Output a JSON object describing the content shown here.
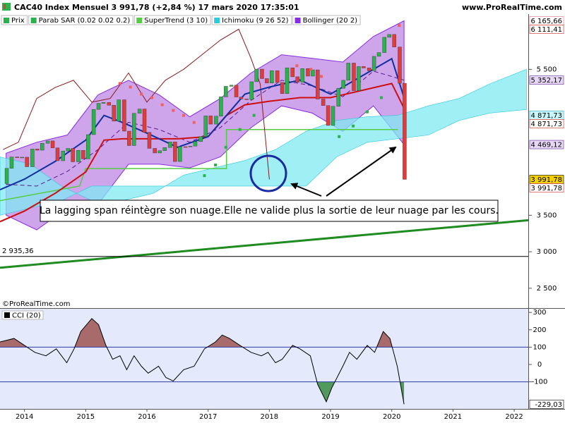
{
  "header": {
    "title": "CAC40 Index Mensuel 3 991,78 (+2,84 %) 17 mars 2020 17:35:01",
    "site": "www.ProRealTime.com",
    "watermark": "©ProRealTime.com"
  },
  "chart_data": [
    {
      "type": "price",
      "xlim": [
        2013.6,
        2022.23
      ],
      "ylim": [
        2228,
        6257
      ],
      "yticks": [
        {
          "value": 2500,
          "label": "2 500"
        },
        {
          "value": 3000,
          "label": "3 000"
        },
        {
          "value": 3500,
          "label": "3 500"
        },
        {
          "value": 5500,
          "label": "5 500"
        }
      ],
      "annotation": "La lagging span réintègre son nuage.Elle ne valide plus la sortie de leur nuage par les cours.",
      "series": [
        {
          "name": "Prix",
          "color": "#2bb24c",
          "down_color": "#e03c3c",
          "x": [
            2013.63,
            2013.71,
            2013.79,
            2013.88,
            2013.96,
            2014.04,
            2014.13,
            2014.21,
            2014.29,
            2014.38,
            2014.46,
            2014.54,
            2014.63,
            2014.71,
            2014.79,
            2014.88,
            2014.96,
            2015.04,
            2015.13,
            2015.21,
            2015.29,
            2015.38,
            2015.46,
            2015.54,
            2015.63,
            2015.71,
            2015.79,
            2015.88,
            2015.96,
            2016.04,
            2016.13,
            2016.21,
            2016.29,
            2016.38,
            2016.46,
            2016.54,
            2016.63,
            2016.71,
            2016.79,
            2016.88,
            2016.96,
            2017.04,
            2017.13,
            2017.21,
            2017.29,
            2017.38,
            2017.46,
            2017.54,
            2017.63,
            2017.71,
            2017.79,
            2017.88,
            2017.96,
            2018.04,
            2018.13,
            2018.21,
            2018.29,
            2018.38,
            2018.46,
            2018.54,
            2018.63,
            2018.71,
            2018.79,
            2018.88,
            2018.96,
            2019.04,
            2019.13,
            2019.21,
            2019.29,
            2019.38,
            2019.46,
            2019.54,
            2019.63,
            2019.71,
            2019.79,
            2019.88,
            2019.96,
            2020.04,
            2020.13,
            2020.21
          ],
          "values": [
            3934,
            4143,
            4299,
            4295,
            4296,
            4165,
            4408,
            4392,
            4487,
            4519,
            4423,
            4247,
            4381,
            4416,
            4233,
            4390,
            4273,
            4605,
            4951,
            5034,
            5046,
            5008,
            4790,
            5083,
            4653,
            4455,
            4898,
            4957,
            4637,
            4417,
            4354,
            4385,
            4429,
            4506,
            4237,
            4440,
            4438,
            4448,
            4510,
            4578,
            4862,
            4749,
            4858,
            5123,
            5267,
            5283,
            5121,
            5094,
            5086,
            5330,
            5503,
            5373,
            5313,
            5482,
            5320,
            5167,
            5521,
            5398,
            5324,
            5511,
            5407,
            5493,
            5093,
            5003,
            4731,
            4993,
            5241,
            5350,
            5586,
            5208,
            5539,
            5519,
            5480,
            5678,
            5730,
            5939,
            5978,
            5806,
            5309,
            3991.78
          ]
        },
        {
          "name": "Parab SAR (0.02 0.02 0.2)",
          "color": "#2bb24c",
          "down_color": "#f06060",
          "x": [
            2015.56,
            2015.73,
            2015.91,
            2016.08,
            2016.25,
            2016.43,
            2016.6,
            2016.77,
            2016.94,
            2017.12,
            2017.29,
            2017.52,
            2017.75,
            2018.45,
            2018.68,
            2018.85,
            2019.14,
            2019.37,
            2019.6,
            2019.83,
            2020.12
          ],
          "values": [
            5306,
            5257,
            5160,
            5112,
            5014,
            4937,
            4869,
            4772,
            4043,
            4189,
            4432,
            4675,
            4869,
            5549,
            5500,
            5403,
            4578,
            4723,
            4917,
            5112,
            6102
          ]
        },
        {
          "name": "SuperTrend (3 10)",
          "color": "#55cc44",
          "x": [
            2013.6,
            2014.9,
            2015.0,
            2017.3,
            2017.3,
            2018.9,
            2020.1
          ],
          "values": [
            3700,
            3900,
            4140,
            4140,
            4675,
            4675,
            4675
          ]
        },
        {
          "name": "Ichimoku (9 26 52)",
          "color": "#2fc8dc",
          "cloud": {
            "color": "#7fe9f2",
            "x": [
              2013.6,
              2014.1,
              2014.6,
              2015.1,
              2015.6,
              2016.1,
              2016.6,
              2017.1,
              2017.6,
              2018.1,
              2018.6,
              2019.1,
              2019.6,
              2020.1,
              2020.6,
              2021.1,
              2021.6,
              2022.2
            ],
            "span_a": [
              4300,
              4200,
              3900,
              3700,
              3700,
              3800,
              4050,
              4150,
              4250,
              4400,
              4650,
              4800,
              4850,
              4870,
              5000,
              5100,
              5300,
              5500
            ],
            "span_b": [
              3500,
              3600,
              3700,
              3900,
              3900,
              3900,
              3900,
              3900,
              3900,
              3900,
              3900,
              4300,
              4500,
              4550,
              4600,
              4800,
              4900,
              4950
            ]
          },
          "kijun": {
            "color": "#cc1010",
            "x": [
              2013.6,
              2014.0,
              2014.5,
              2015.0,
              2015.3,
              2015.6,
              2016.0,
              2016.5,
              2017.0,
              2017.3,
              2017.6,
              2018.0,
              2018.5,
              2019.0,
              2019.5,
              2020.0,
              2020.2
            ],
            "values": [
              3413,
              3558,
              3800,
              4092,
              4529,
              4548,
              4548,
              4548,
              4578,
              4869,
              5014,
              5063,
              5112,
              5112,
              5209,
              5306,
              4966
            ]
          },
          "tenkan": {
            "color": "#1030a0",
            "x": [
              2013.6,
              2014.0,
              2014.5,
              2015.0,
              2015.3,
              2015.6,
              2016.0,
              2016.5,
              2017.0,
              2017.3,
              2017.6,
              2018.0,
              2018.5,
              2019.0,
              2019.5,
              2020.0,
              2020.2
            ],
            "values": [
              3850,
              3995,
              4238,
              4529,
              4869,
              4772,
              4626,
              4432,
              4578,
              4869,
              5160,
              5257,
              5354,
              5160,
              5403,
              5646,
              5112
            ]
          },
          "lagging": {
            "color": "#8b1a1a",
            "x": [
              2013.65,
              2013.9,
              2014.2,
              2014.5,
              2014.8,
              2015.1,
              2015.4,
              2015.7,
              2016.0,
              2016.3,
              2016.6,
              2016.9,
              2017.2,
              2017.5,
              2017.7,
              2017.85,
              2018.0
            ],
            "values": [
              4400,
              4500,
              5100,
              5250,
              5350,
              5050,
              5100,
              5450,
              5050,
              5350,
              5500,
              5700,
              5900,
              6050,
              5650,
              5300,
              3991.78
            ]
          }
        },
        {
          "name": "Bollinger (20 2)",
          "color": "#8a2be2",
          "fill": "#a55ad8",
          "x": [
            2013.7,
            2014.2,
            2014.7,
            2015.2,
            2015.7,
            2016.2,
            2016.7,
            2017.2,
            2017.7,
            2018.2,
            2018.7,
            2019.2,
            2019.7,
            2020.2
          ],
          "upper": [
            4350,
            4500,
            4600,
            5150,
            5350,
            5150,
            4850,
            5100,
            5450,
            5700,
            5650,
            5600,
            5950,
            6165.66
          ],
          "middle": [
            3925,
            3900,
            4100,
            4400,
            4775,
            4675,
            4500,
            4700,
            5075,
            5350,
            5275,
            5125,
            5475,
            5352.17
          ],
          "lower": [
            3500,
            3300,
            3600,
            3650,
            4200,
            4200,
            4150,
            4300,
            4700,
            5000,
            4900,
            4650,
            5000,
            4469.12
          ]
        }
      ],
      "trendline": {
        "color": "#1e8c1e",
        "x": [
          2013.6,
          2022.23
        ],
        "values": [
          2781,
          3432
        ]
      },
      "hline": {
        "color": "#000000",
        "value": 2935.36,
        "label": "2 935,36"
      },
      "tags": [
        {
          "value": 6165.66,
          "label": "6 165,66",
          "color": "#e07080",
          "background": "#ffffff"
        },
        {
          "value": 6111.41,
          "label": "6 111,41",
          "color": "#d02020",
          "background": "#ffffff"
        },
        {
          "value": 5352.17,
          "label": "5 352,17",
          "color": "#5a2c9c",
          "background": "#e8d8f8"
        },
        {
          "value": 4871.73,
          "label": "4 871,73",
          "color": "#2aa8b8",
          "background": "#c8f6fa"
        },
        {
          "value": 4871.73,
          "label": "4 871,73",
          "color": "#d02020",
          "background": "#ffffff"
        },
        {
          "value": 4469.12,
          "label": "4 469,12",
          "color": "#5a2c9c",
          "background": "#e8d8f8"
        },
        {
          "value": 3991.78,
          "label": "3 991,78",
          "color": "#000000",
          "background": "#f5d000"
        },
        {
          "value": 3991.78,
          "label": "3 991,78",
          "color": "#d02020",
          "background": "#ffffff"
        }
      ]
    },
    {
      "type": "line",
      "title": "CCI (20)",
      "color": "#000000",
      "above_color": "#a86a6a",
      "below_color": "#4f9a5c",
      "xlim": [
        2013.6,
        2022.23
      ],
      "xticks": [
        2014,
        2015,
        2016,
        2017,
        2018,
        2019,
        2020,
        2021,
        2022
      ],
      "ylim": [
        -256,
        321
      ],
      "yticks": [
        300,
        200,
        100,
        0,
        -100
      ],
      "levels": [
        100,
        -100
      ],
      "x": [
        2013.6,
        2013.83,
        2014.0,
        2014.17,
        2014.35,
        2014.52,
        2014.69,
        2014.81,
        2014.92,
        2015.1,
        2015.21,
        2015.33,
        2015.44,
        2015.56,
        2015.67,
        2015.79,
        2015.91,
        2016.02,
        2016.19,
        2016.31,
        2016.43,
        2016.6,
        2016.77,
        2016.94,
        2017.12,
        2017.23,
        2017.35,
        2017.52,
        2017.7,
        2017.87,
        2017.98,
        2018.1,
        2018.21,
        2018.38,
        2018.5,
        2018.67,
        2018.79,
        2018.93,
        2019.02,
        2019.2,
        2019.31,
        2019.43,
        2019.6,
        2019.72,
        2019.86,
        2019.97,
        2020.09,
        2020.2
      ],
      "values": [
        130,
        150,
        110,
        70,
        50,
        90,
        10,
        90,
        190,
        265,
        230,
        110,
        30,
        50,
        -30,
        50,
        -10,
        -50,
        -10,
        -75,
        -95,
        -30,
        -10,
        90,
        130,
        170,
        150,
        110,
        70,
        50,
        70,
        10,
        30,
        110,
        90,
        50,
        -115,
        -215,
        -135,
        -10,
        70,
        30,
        110,
        70,
        190,
        150,
        -10,
        -229.03
      ],
      "tags": [
        {
          "value": -229.03,
          "label": "-229,03",
          "color": "#000000",
          "background": "#ffffff"
        }
      ]
    }
  ]
}
